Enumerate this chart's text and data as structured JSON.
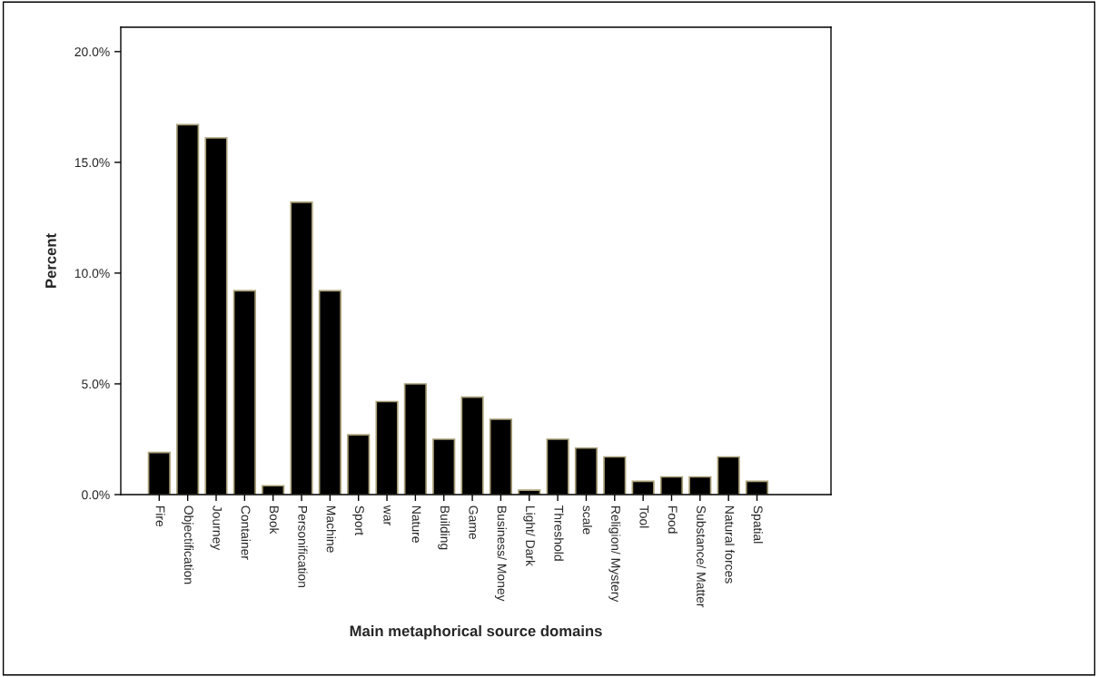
{
  "chart_data": {
    "type": "bar",
    "xlabel": "Main metaphorical source domains",
    "ylabel": "Percent",
    "categories": [
      "Fire",
      "Objectification",
      "Journey",
      "Container",
      "Book",
      "Personification",
      "Machine",
      "Sport",
      "war",
      "Nature",
      "Building",
      "Game",
      "Business/ Money",
      "Light/ Dark",
      "Threshold",
      "scale",
      "Religion/ Mystery",
      "Tool",
      "Food",
      "Substance/ Matter",
      "Natural forces",
      "Spatial"
    ],
    "values": [
      1.9,
      16.7,
      16.1,
      9.2,
      0.4,
      13.2,
      9.2,
      2.7,
      4.2,
      5.0,
      2.5,
      4.4,
      3.4,
      0.2,
      2.5,
      2.1,
      1.7,
      0.6,
      0.8,
      0.8,
      1.7,
      0.6
    ],
    "color": "#000000",
    "ylim": [
      0,
      21.1
    ],
    "yticks": [
      {
        "value": 0,
        "label": "0.0%"
      },
      {
        "value": 5,
        "label": "5.0%"
      },
      {
        "value": 10,
        "label": "10.0%"
      },
      {
        "value": 15,
        "label": "15.0%"
      },
      {
        "value": 20,
        "label": "20.0%"
      }
    ],
    "grid": false,
    "legend": false
  }
}
